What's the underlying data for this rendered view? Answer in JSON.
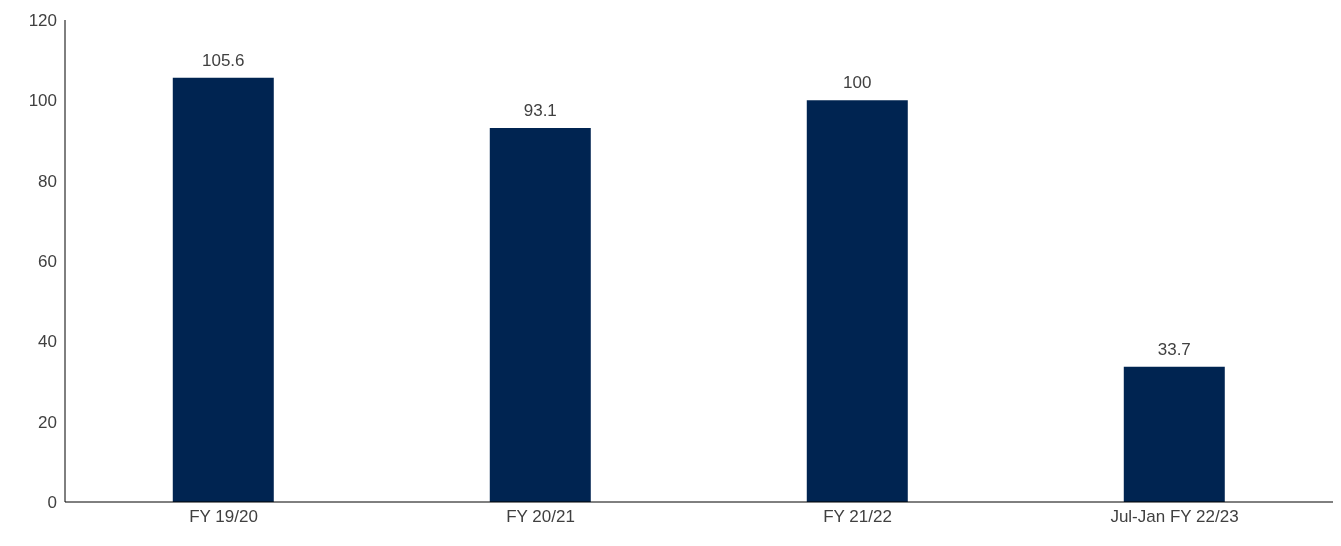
{
  "chart_data": {
    "type": "bar",
    "categories": [
      "FY 19/20",
      "FY 20/21",
      "FY 21/22",
      "Jul-Jan FY 22/23"
    ],
    "values": [
      105.6,
      93.1,
      100,
      33.7
    ],
    "color": "#002451",
    "ylim": [
      0,
      120
    ],
    "yticks": [
      0,
      20,
      40,
      60,
      80,
      100,
      120
    ],
    "grid": false,
    "data_labels": true
  }
}
